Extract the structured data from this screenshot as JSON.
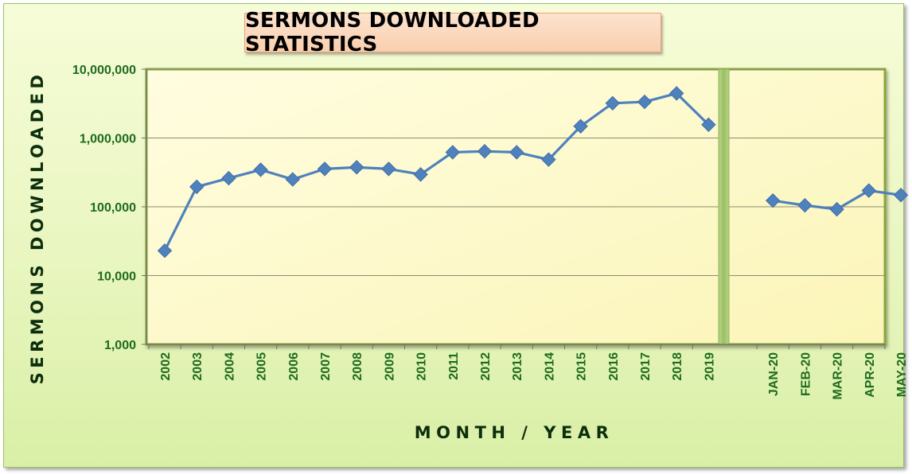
{
  "chart_data": {
    "type": "line",
    "title": "SERMONS DOWNLOADED STATISTICS",
    "xlabel": "MONTH / YEAR",
    "ylabel": "SERMONS DOWNLOADED",
    "yscale": "log",
    "ylim": [
      1000,
      10000000
    ],
    "y_ticks": [
      "1,000",
      "10,000",
      "100,000",
      "1,000,000",
      "10,000,000"
    ],
    "y_tick_values": [
      1000,
      10000,
      100000,
      1000000,
      10000000
    ],
    "grid": "horizontal",
    "legend": "none",
    "colors": {
      "line": "#4f81bd",
      "marker": "#4f81bd",
      "plot_bg": "#fefbc8",
      "plot_border": "#8aa83a",
      "tick_text": "#1f6b1f",
      "separator": "#a9c96d"
    },
    "categories": [
      "2002",
      "2003",
      "2004",
      "2005",
      "2006",
      "2007",
      "2008",
      "2009",
      "2010",
      "2011",
      "2012",
      "2013",
      "2014",
      "2015",
      "2016",
      "2017",
      "2018",
      "2019",
      "JAN-20",
      "FEB-20",
      "MAR-20",
      "APR-20",
      "MAY-20"
    ],
    "segments": [
      {
        "x": [
          "2002",
          "2003",
          "2004",
          "2005",
          "2006",
          "2007",
          "2008",
          "2009",
          "2010",
          "2011",
          "2012",
          "2013",
          "2014",
          "2015",
          "2016",
          "2017",
          "2018",
          "2019"
        ],
        "values": [
          23000,
          195000,
          260000,
          345000,
          250000,
          355000,
          375000,
          355000,
          295000,
          620000,
          640000,
          620000,
          485000,
          1480000,
          3200000,
          3350000,
          4450000,
          1560000
        ]
      },
      {
        "x": [
          "JAN-20",
          "FEB-20",
          "MAR-20",
          "APR-20",
          "MAY-20"
        ],
        "values": [
          123000,
          105000,
          92000,
          172000,
          148000
        ]
      }
    ]
  }
}
